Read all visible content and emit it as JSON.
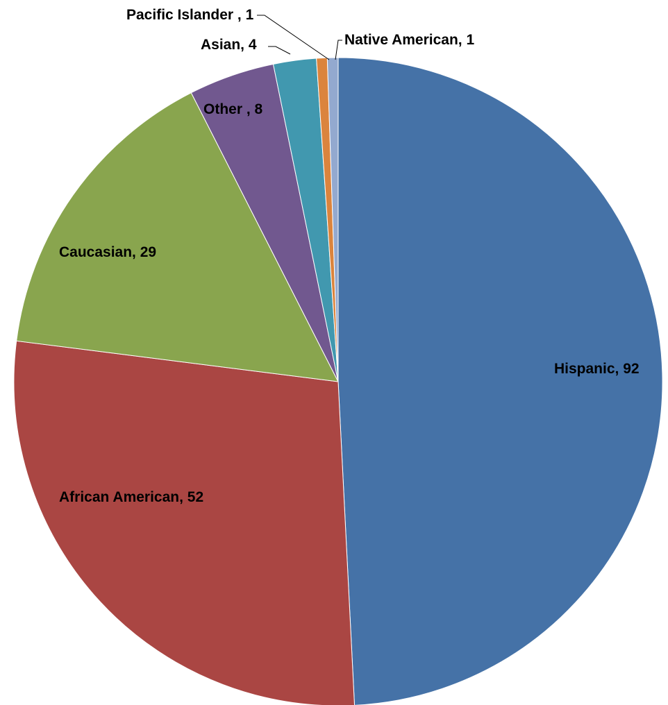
{
  "chart_data": {
    "type": "pie",
    "title": "",
    "legend": "none",
    "slices": [
      {
        "label": "Hispanic",
        "value": 92,
        "color": "#4572A7",
        "text": "Hispanic, 92"
      },
      {
        "label": "African American",
        "value": 52,
        "color": "#AA4643",
        "text": "African American, 52"
      },
      {
        "label": "Caucasian",
        "value": 29,
        "color": "#89A54E",
        "text": "Caucasian, 29"
      },
      {
        "label": "Other",
        "value": 8,
        "color": "#71588F",
        "text": "Other , 8"
      },
      {
        "label": "Asian",
        "value": 4,
        "color": "#4198AF",
        "text": "Asian, 4"
      },
      {
        "label": "Pacific Islander",
        "value": 1,
        "color": "#DB843D",
        "text": "Pacific Islander , 1"
      },
      {
        "label": "Native American",
        "value": 1,
        "color": "#93A9CF",
        "text": "Native American, 1"
      }
    ]
  }
}
